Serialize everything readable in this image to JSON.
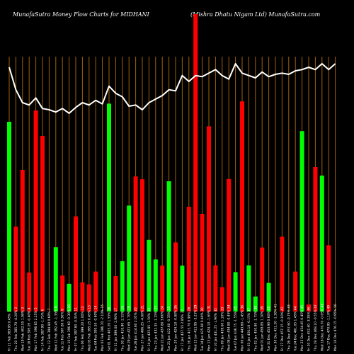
{
  "header": {
    "left": "MunafaSutra  Money Flow  Charts for MIDHANI",
    "right": "(Mishra  Dhatu   Nigam Ltd) MunafaSutra.com"
  },
  "colors": {
    "background": "#000000",
    "up": "#00ff00",
    "down": "#ff0000",
    "grid": "#a0600a",
    "line": "#ffffff"
  },
  "chart_data": {
    "type": "bar",
    "title": "MunafaSutra  Money Flow  Charts for MIDHANI",
    "subtitle": "(Mishra  Dhatu   Nigam Ltd) MunafaSutra.com",
    "grid": "vertical",
    "categories": [
      "Fri 21 Feb 383.95 0.45% 1",
      "Thu 20 Feb 385.70 -4.20% 2",
      "Wed 19 Feb 402.55 1.90% 3",
      "Tue 18 Feb 395.05 -0.40% 4",
      "Mon 17 Feb 396.65 2.25% 5",
      "Fri 14 Feb 387.90 -1.75% 6",
      "Thu 13 Feb 394.80 0.60% 7",
      "Wed 12 Feb 392.45 -1.35% 8",
      "Tue 11 Feb 397.80 0.30% 9",
      "Mon 10 Feb 396.60 -0.30% 10",
      "Fri 07 Feb 397.80 -0.35% 11",
      "Thu 06 Feb 399.20 1.00% 12",
      "Wed 05 Feb 395.25 0.45% 13",
      "Tue 04 Feb 393.50 -0.80% 14",
      "Mon 03 Feb 396.70 -2.10% 15",
      "Sat 01 Feb 405.20 1.55% 16",
      "Fri 31 Jan 399.00 -2.90% 17",
      "Thu 30 Jan 410.90 -2.55% 18",
      "Wed 29 Jan 421.65 1.70% 19",
      "Tue 28 Jan 414.60 2.05% 20",
      "Mon 27 Jan 406.25 -4.60% 21",
      "Fri 24 Jan 425.85 -1.50% 22",
      "Thu 23 Jan 432.35 -1.25% 23",
      "Wed 22 Jan 437.80 3.60% 24",
      "Tue 21 Jan 422.60 -0.35% 25",
      "Mon 20 Jan 424.10 -0.80% 26",
      "Fri 17 Jan 427.55 2.85% 27",
      "Thu 16 Jan 415.70 0.90% 28",
      "Wed 15 Jan 411.95 -3.25% 29",
      "Tue 14 Jan 425.80 0.40% 30",
      "Mon 13 Jan 424.10 -1.65% 31",
      "Fri 10 Jan 431.25 -1.90% 32",
      "Thu 09 Jan 439.60 1.10% 33",
      "Wed 08 Jan 434.80 -0.45% 34",
      "Tue 07 Jan 436.75 -1.55% 35",
      "Mon 06 Jan 443.60 -1.45% 36",
      "Fri 03 Jan 450.10 -0.15% 37",
      "Thu 02 Jan 450.80 -1.75% 38",
      "Wed 01 Jan 458.85 1.10% 39",
      "Tue 31 Dec 453.90 0.60% 40",
      "Mon 30 Dec 451.20 -1.30% 41",
      "Fri 27 Dec 457.15 -0.10% 42",
      "Thu 26 Dec 457.60 -0.75% 43",
      "Tue 24 Dec 461.05 1.45% 44",
      "Mon 23 Dec 454.45 0.45% 45",
      "Fri 20 Dec 452.40 -3.35% 46",
      "Thu 19 Dec 468.10 -0.55% 47",
      "Wed 18 Dec 470.70 -0.05% 48",
      "Tue 17 Dec 470.95 -1.10% 49",
      "Mon 16 Dec 476.15 -0.95% 50"
    ],
    "bar_colors": [
      "up",
      "down",
      "down",
      "down",
      "down",
      "down",
      "down",
      "up",
      "down",
      "up",
      "down",
      "down",
      "down",
      "down",
      "down",
      "up",
      "down",
      "up",
      "up",
      "down",
      "down",
      "up",
      "up",
      "down",
      "up",
      "down",
      "up",
      "down",
      "down",
      "down",
      "down",
      "down",
      "down",
      "down",
      "up",
      "down",
      "up",
      "up",
      "down",
      "up",
      "down",
      "down",
      "up",
      "down",
      "up",
      "down",
      "down",
      "up",
      "down",
      "down"
    ],
    "values": [
      67,
      30,
      50,
      13.8,
      71,
      62,
      0,
      22.7,
      12.7,
      9.8,
      33.6,
      10.3,
      9.6,
      14.1,
      0,
      73.4,
      12.5,
      17.8,
      37.4,
      47.7,
      46.7,
      25.3,
      18.4,
      16.2,
      46,
      24.4,
      16.2,
      37,
      105,
      34.5,
      65.4,
      16.3,
      8.6,
      46.8,
      13.9,
      74.2,
      16.3,
      5.3,
      22.6,
      10.1,
      0,
      26.4,
      0,
      14.1,
      63.7,
      2.5,
      51,
      48,
      23.4,
      0
    ],
    "close_values": [
      477,
      458,
      447,
      445,
      451,
      442,
      441,
      439,
      442,
      438,
      443,
      447,
      445,
      449,
      446,
      461,
      455,
      452,
      444,
      445,
      441,
      447,
      450,
      453,
      458,
      457,
      470,
      465,
      470,
      469,
      472,
      475,
      470,
      467,
      480,
      472,
      470,
      468,
      473,
      469,
      471,
      472,
      471,
      474,
      475,
      477,
      475,
      480,
      475,
      480
    ],
    "ylim": [
      0,
      105
    ],
    "close_ylim": [
      420,
      480
    ],
    "xlabel": "",
    "ylabel": ""
  }
}
